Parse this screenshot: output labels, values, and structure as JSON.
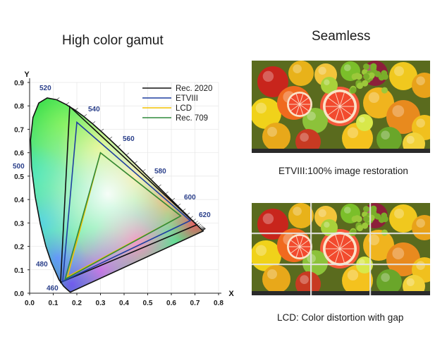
{
  "left_panel": {
    "title": "High color gamut",
    "axis_y_label": "Y",
    "axis_x_label": "X",
    "x_ticks": [
      "0.0",
      "0.1",
      "0.2",
      "0.3",
      "0.4",
      "0.5",
      "0.6",
      "0.7",
      "0.8"
    ],
    "y_ticks": [
      "0.0",
      "0.1",
      "0.2",
      "0.3",
      "0.4",
      "0.5",
      "0.6",
      "0.7",
      "0.8",
      "0.9"
    ],
    "wavelength_labels": [
      "520",
      "540",
      "560",
      "580",
      "600",
      "620",
      "500",
      "480",
      "460"
    ],
    "legend": [
      {
        "name": "Rec. 2020",
        "color": "#111111"
      },
      {
        "name": "ETVIII",
        "color": "#1f3fa0"
      },
      {
        "name": "LCD",
        "color": "#f2c200"
      },
      {
        "name": "Rec. 709",
        "color": "#2f8a3c"
      }
    ]
  },
  "right_panel": {
    "title": "Seamless",
    "etv_caption": "ETVIII:100% image restoration",
    "lcd_caption": "LCD: Color distortion with gap"
  },
  "chart_data": {
    "type": "scatter",
    "xlabel": "X",
    "ylabel": "Y",
    "xlim": [
      0,
      0.8
    ],
    "ylim": [
      0,
      0.9
    ],
    "grid": true,
    "legend_position": "top-right",
    "series": [
      {
        "name": "Rec. 2020",
        "points": [
          [
            0.708,
            0.292
          ],
          [
            0.17,
            0.797
          ],
          [
            0.131,
            0.046
          ]
        ]
      },
      {
        "name": "ETVIII",
        "points": [
          [
            0.68,
            0.31
          ],
          [
            0.2,
            0.73
          ],
          [
            0.14,
            0.05
          ]
        ]
      },
      {
        "name": "LCD",
        "points": [
          [
            0.64,
            0.33
          ],
          [
            0.3,
            0.6
          ],
          [
            0.16,
            0.07
          ]
        ]
      },
      {
        "name": "Rec. 709",
        "points": [
          [
            0.64,
            0.33
          ],
          [
            0.3,
            0.6
          ],
          [
            0.15,
            0.06
          ]
        ]
      }
    ]
  }
}
